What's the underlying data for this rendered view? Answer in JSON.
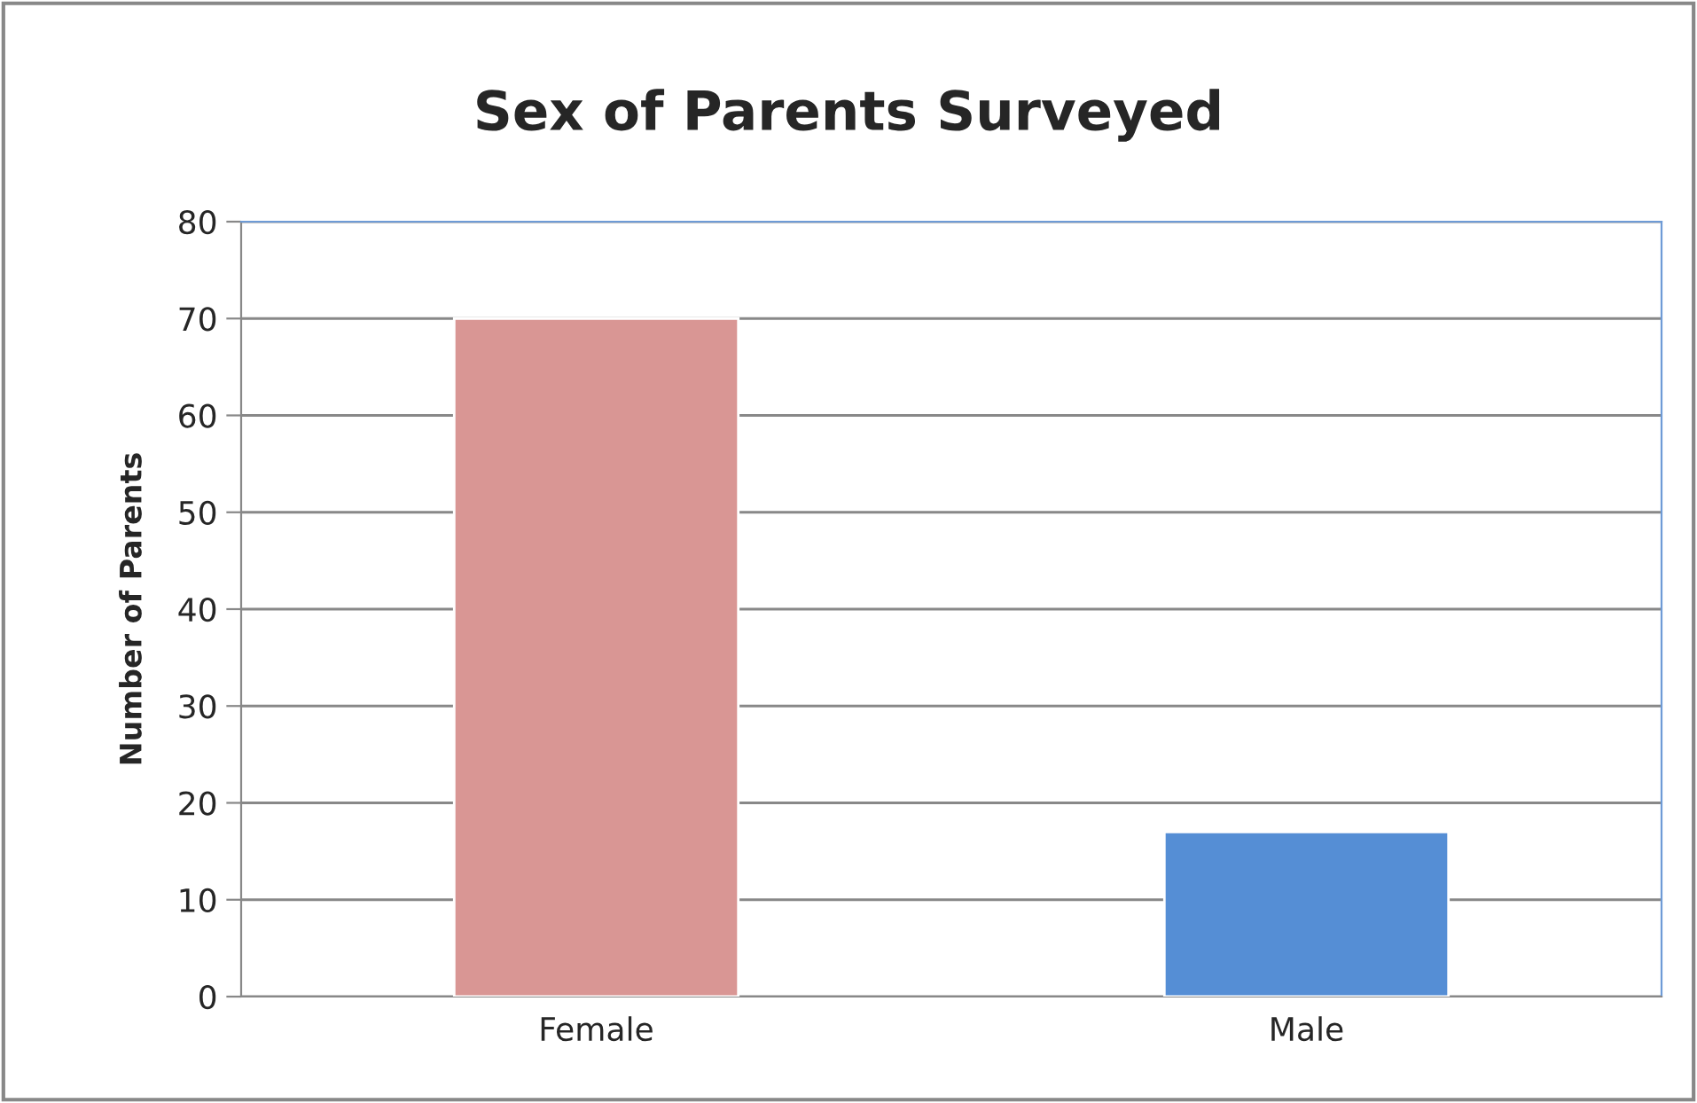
{
  "chart_data": {
    "type": "bar",
    "title": "Sex of Parents Surveyed",
    "ylabel": "Number of Parents",
    "categories": [
      "Female",
      "Male"
    ],
    "values": [
      70,
      17
    ],
    "colors": [
      "#d99694",
      "#558ed5"
    ],
    "ylim": [
      0,
      80
    ],
    "yticks": [
      0,
      10,
      20,
      30,
      40,
      50,
      60,
      70,
      80
    ],
    "grid": "y",
    "legend": false
  }
}
